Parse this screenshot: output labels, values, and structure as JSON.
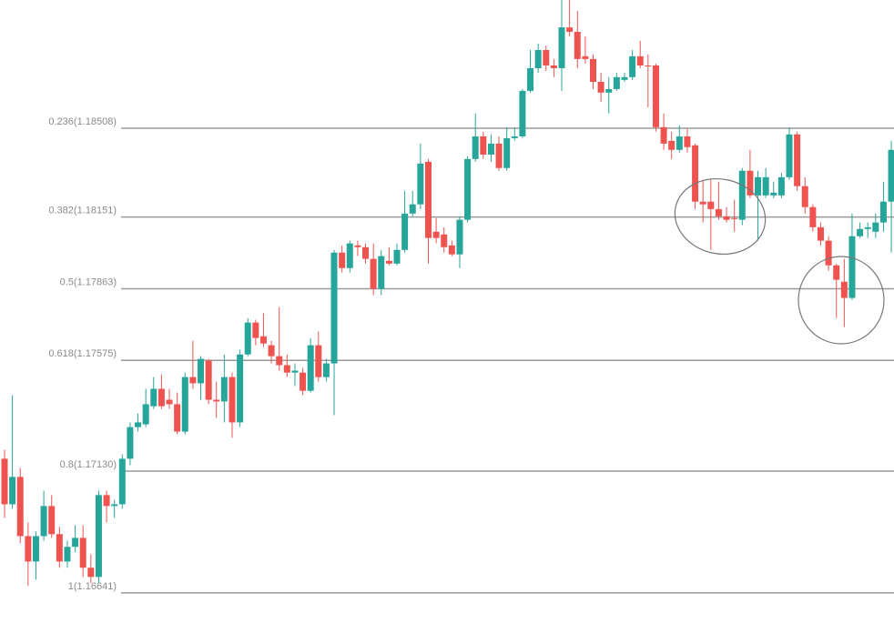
{
  "chart_data": {
    "type": "candlestick",
    "up_color": "#26a69a",
    "down_color": "#ef5350",
    "ylim": [
      1.1652,
      1.19023
    ],
    "fib_levels": [
      {
        "value": 1.18508,
        "label": "0.236(1.18508)"
      },
      {
        "value": 1.18151,
        "label": "0.382(1.18151)"
      },
      {
        "value": 1.17863,
        "label": "0.5(1.17863)"
      },
      {
        "value": 1.17575,
        "label": "0.618(1.17575)"
      },
      {
        "value": 1.1713,
        "label": "0.8(1.17130)"
      },
      {
        "value": 1.16641,
        "label": "1(1.16641)"
      }
    ],
    "open": [
      1.1718,
      1.16997,
      1.17107,
      1.16869,
      1.16767,
      1.16869,
      1.1699,
      1.16877,
      1.16767,
      1.16826,
      1.16862,
      1.16742,
      1.16705,
      1.17034,
      1.1699,
      1.16997,
      1.1718,
      1.17307,
      1.17318,
      1.17391,
      1.17461,
      1.17417,
      1.17399,
      1.17289,
      1.17508,
      1.17483,
      1.17574,
      1.17417,
      1.1741,
      1.17508,
      1.17326,
      1.17599,
      1.17727,
      1.17672,
      1.17636,
      1.17592,
      1.17556,
      1.17526,
      1.17526,
      1.17453,
      1.17636,
      1.17508,
      1.17563,
      1.18008,
      1.17946,
      1.18037,
      1.1803,
      1.17983,
      1.17862,
      1.17975,
      1.17964,
      1.18019,
      1.18165,
      1.18202,
      1.18373,
      1.18092,
      1.18081,
      1.18037,
      1.18001,
      1.1814,
      1.18384,
      1.18475,
      1.18402,
      1.18446,
      1.18348,
      1.18468,
      1.18475,
      1.18658,
      1.18749,
      1.18822,
      1.1876,
      1.18749,
      1.18913,
      1.18895,
      1.18797,
      1.18786,
      1.18694,
      1.18651,
      1.18665,
      1.18702,
      1.18713,
      1.18797,
      1.1876,
      1.1876,
      1.18512,
      1.18457,
      1.18421,
      1.18475,
      1.18439,
      1.18213,
      1.18213,
      1.18183,
      1.18154,
      1.18147,
      1.1814,
      1.18337,
      1.18238,
      1.18238,
      1.18238,
      1.18238,
      1.18311,
      1.18483,
      1.18275,
      1.18191,
      1.1811,
      1.18056,
      1.17957,
      1.17891,
      1.17826,
      1.18074,
      1.18103,
      1.18092,
      1.18129,
      1.18213
    ],
    "high": [
      1.17216,
      1.17435,
      1.17143,
      1.16924,
      1.16888,
      1.17052,
      1.17034,
      1.16906,
      1.16851,
      1.16913,
      1.16913,
      1.16796,
      1.17052,
      1.17052,
      1.17015,
      1.17198,
      1.17326,
      1.17362,
      1.17461,
      1.17508,
      1.17519,
      1.17461,
      1.17446,
      1.17526,
      1.17654,
      1.17592,
      1.17581,
      1.1749,
      1.17599,
      1.17526,
      1.17618,
      1.17745,
      1.17738,
      1.17764,
      1.17654,
      1.17789,
      1.17599,
      1.17563,
      1.17545,
      1.17665,
      1.17691,
      1.17581,
      1.18019,
      1.18037,
      1.18056,
      1.18056,
      1.18045,
      1.18045,
      1.18019,
      1.1803,
      1.18045,
      1.18256,
      1.18256,
      1.18446,
      1.18384,
      1.18147,
      1.1811,
      1.18056,
      1.18154,
      1.18395,
      1.18567,
      1.18494,
      1.18483,
      1.18475,
      1.18512,
      1.18512,
      1.18665,
      1.18822,
      1.18848,
      1.1884,
      1.18786,
      1.19023,
      1.19023,
      1.18979,
      1.18877,
      1.18804,
      1.18731,
      1.18713,
      1.18731,
      1.18731,
      1.18822,
      1.18859,
      1.18804,
      1.18767,
      1.18567,
      1.18494,
      1.18519,
      1.18505,
      1.18446,
      1.183,
      1.183,
      1.18293,
      1.18191,
      1.1822,
      1.18348,
      1.18421,
      1.18337,
      1.18348,
      1.18293,
      1.18329,
      1.18512,
      1.18494,
      1.18311,
      1.18202,
      1.18129,
      1.18074,
      1.17964,
      1.17983,
      1.18165,
      1.18129,
      1.18129,
      1.18165,
      1.18293,
      1.18457
    ],
    "low": [
      1.16942,
      1.16979,
      1.1684,
      1.16669,
      1.16694,
      1.16851,
      1.16862,
      1.16742,
      1.16742,
      1.16804,
      1.16705,
      1.1668,
      1.1668,
      1.16924,
      1.16942,
      1.16979,
      1.17154,
      1.17289,
      1.17307,
      1.1738,
      1.1738,
      1.1738,
      1.17278,
      1.17278,
      1.17461,
      1.17417,
      1.17399,
      1.17344,
      1.17326,
      1.17264,
      1.17307,
      1.17592,
      1.17636,
      1.17629,
      1.17563,
      1.17534,
      1.17508,
      1.17472,
      1.17435,
      1.17446,
      1.1749,
      1.1749,
      1.17355,
      1.17928,
      1.17928,
      1.17994,
      1.17964,
      1.17837,
      1.17837,
      1.17957,
      1.17957,
      1.18008,
      1.18154,
      1.18183,
      1.17964,
      1.18045,
      1.18008,
      1.17994,
      1.17946,
      1.18129,
      1.18373,
      1.18384,
      1.18373,
      1.18337,
      1.18337,
      1.18457,
      1.18468,
      1.18651,
      1.18731,
      1.18738,
      1.18713,
      1.18658,
      1.18877,
      1.18749,
      1.18767,
      1.18665,
      1.18614,
      1.18567,
      1.18658,
      1.18694,
      1.18702,
      1.18749,
      1.18592,
      1.18494,
      1.18421,
      1.18384,
      1.1841,
      1.1841,
      1.18183,
      1.18129,
      1.18019,
      1.1814,
      1.18129,
      1.18092,
      1.18118,
      1.18227,
      1.18056,
      1.18227,
      1.18227,
      1.18227,
      1.183,
      1.18256,
      1.18165,
      1.18092,
      1.18037,
      1.17935,
      1.17745,
      1.17709,
      1.17818,
      1.18067,
      1.18067,
      1.18067,
      1.18092,
      1.18008
    ],
    "close": [
      1.16997,
      1.17107,
      1.16869,
      1.16767,
      1.16869,
      1.1699,
      1.16877,
      1.16767,
      1.16826,
      1.16862,
      1.16742,
      1.16705,
      1.17034,
      1.1699,
      1.16997,
      1.1718,
      1.17307,
      1.17326,
      1.17399,
      1.17461,
      1.17391,
      1.17399,
      1.17289,
      1.17508,
      1.17483,
      1.17581,
      1.17417,
      1.1741,
      1.17508,
      1.17326,
      1.17599,
      1.17727,
      1.17665,
      1.17643,
      1.17592,
      1.17556,
      1.17526,
      1.17534,
      1.17453,
      1.17636,
      1.17508,
      1.17563,
      1.18008,
      1.17946,
      1.18045,
      1.1803,
      1.17983,
      1.17862,
      1.17994,
      1.17964,
      1.18019,
      1.18165,
      1.18202,
      1.18366,
      1.18067,
      1.18067,
      1.1803,
      1.18001,
      1.1814,
      1.18384,
      1.18475,
      1.18402,
      1.18446,
      1.18348,
      1.18468,
      1.18475,
      1.18658,
      1.18749,
      1.18822,
      1.1876,
      1.18749,
      1.18913,
      1.18895,
      1.18786,
      1.18786,
      1.18694,
      1.18651,
      1.18665,
      1.18713,
      1.18713,
      1.18797,
      1.1876,
      1.18757,
      1.18512,
      1.18446,
      1.18421,
      1.18475,
      1.18432,
      1.18213,
      1.18202,
      1.18183,
      1.18154,
      1.1814,
      1.18143,
      1.18337,
      1.18238,
      1.18311,
      1.18311,
      1.18249,
      1.18311,
      1.18483,
      1.18275,
      1.18191,
      1.1811,
      1.18056,
      1.17957,
      1.17899,
      1.17826,
      1.18074,
      1.18103,
      1.1811,
      1.18129,
      1.18213,
      1.18421
    ]
  }
}
